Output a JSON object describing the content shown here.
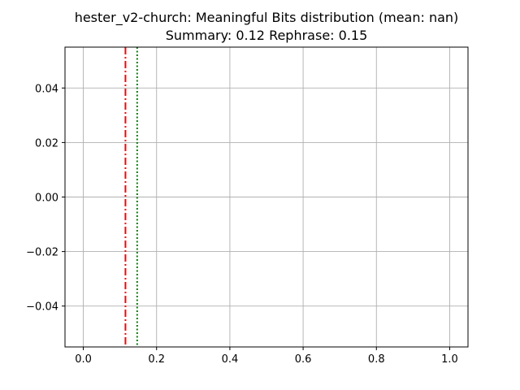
{
  "chart_data": {
    "type": "line",
    "title": "hester_v2-church: Meaningful Bits distribution (mean: nan)",
    "subtitle": "Summary: 0.12 Rephrase: 0.15",
    "xlabel": "",
    "ylabel": "",
    "xlim": [
      -0.05,
      1.05
    ],
    "ylim": [
      -0.055,
      0.055
    ],
    "grid": true,
    "x_ticks": [
      {
        "value": 0.0,
        "label": "0.0"
      },
      {
        "value": 0.2,
        "label": "0.2"
      },
      {
        "value": 0.4,
        "label": "0.4"
      },
      {
        "value": 0.6,
        "label": "0.6"
      },
      {
        "value": 0.8,
        "label": "0.8"
      },
      {
        "value": 1.0,
        "label": "1.0"
      }
    ],
    "y_ticks": [
      {
        "value": 0.04,
        "label": "0.04"
      },
      {
        "value": 0.02,
        "label": "0.02"
      },
      {
        "value": 0.0,
        "label": "0.00"
      },
      {
        "value": -0.02,
        "label": "−0.02"
      },
      {
        "value": -0.04,
        "label": "−0.04"
      }
    ],
    "vlines": [
      {
        "x": 0.115,
        "color": "#ff0000",
        "style": "dashdot"
      },
      {
        "x": 0.147,
        "color": "#008000",
        "style": "dotted"
      }
    ],
    "series": []
  }
}
